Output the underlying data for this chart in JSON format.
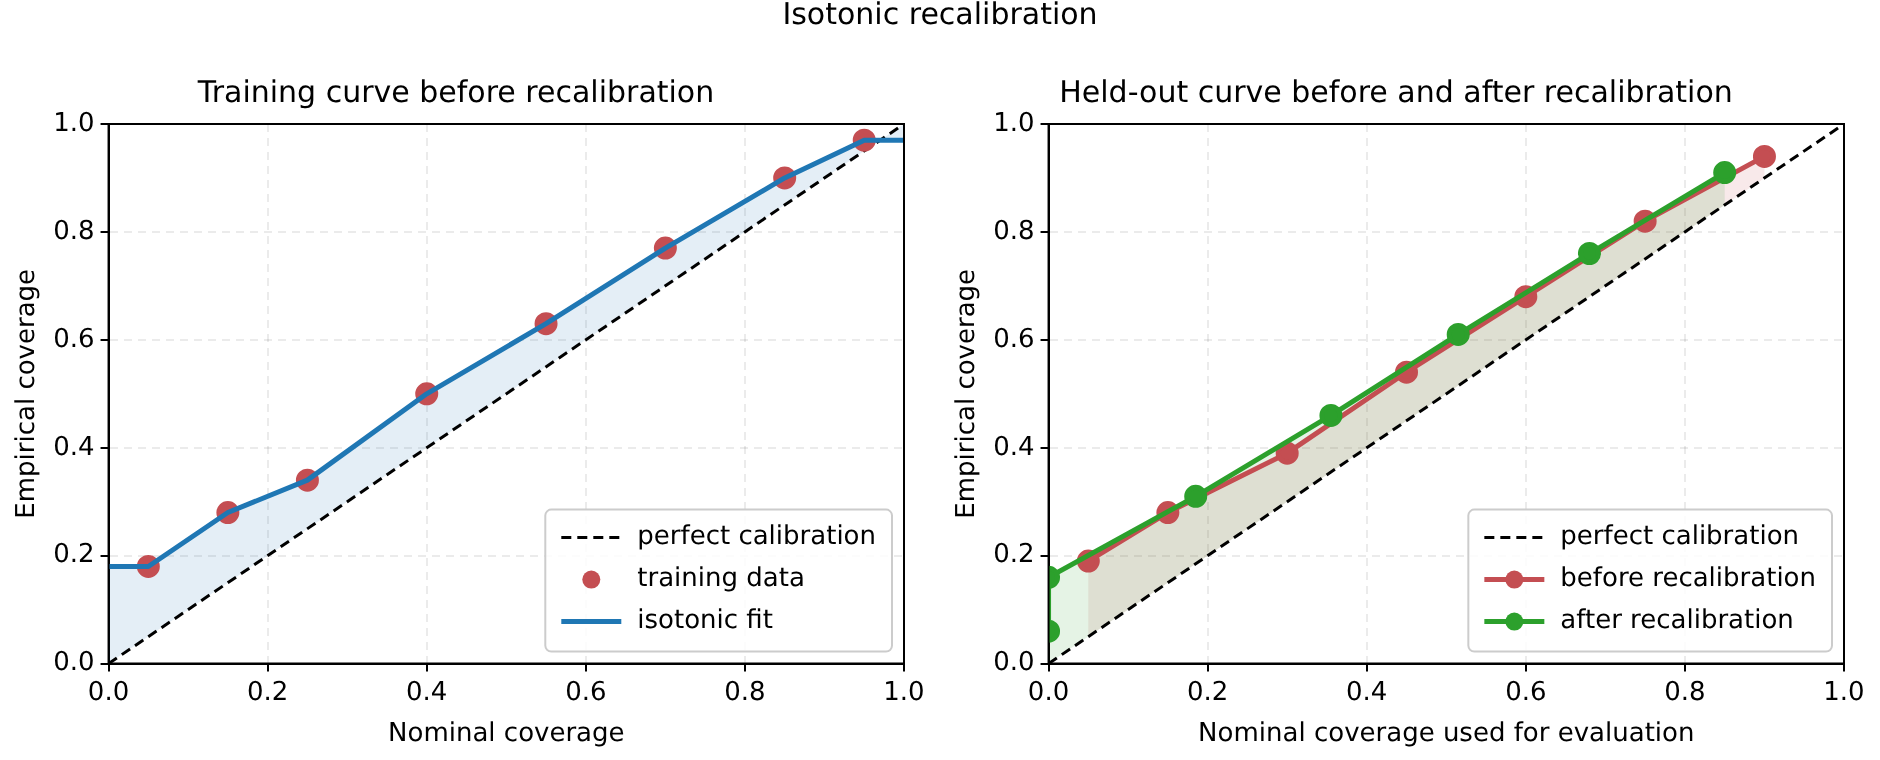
{
  "chart_data": [
    {
      "type": "line",
      "title": "Training curve before recalibration",
      "annotations": [
        "Isotonic recalibration"
      ],
      "xlabel": "Nominal coverage",
      "ylabel": "Empirical coverage",
      "xlim": [
        0,
        1
      ],
      "ylim": [
        0,
        1
      ],
      "xticks": [
        {
          "value": 0,
          "label": "0.0"
        },
        {
          "value": 0.2,
          "label": "0.2"
        },
        {
          "value": 0.4,
          "label": "0.4"
        },
        {
          "value": 0.6,
          "label": "0.6"
        },
        {
          "value": 0.8,
          "label": "0.8"
        },
        {
          "value": 1,
          "label": "1.0"
        }
      ],
      "yticks": [
        {
          "value": 0,
          "label": "0.0"
        },
        {
          "value": 0.2,
          "label": "0.2"
        },
        {
          "value": 0.4,
          "label": "0.4"
        },
        {
          "value": 0.6,
          "label": "0.6"
        },
        {
          "value": 0.8,
          "label": "0.8"
        },
        {
          "value": 1,
          "label": "1.0"
        }
      ],
      "grid": true,
      "legend": "lower right",
      "series": [
        {
          "name": "perfect calibration",
          "type": "line",
          "color": "#000000",
          "line_style": "dashed",
          "marker": "none",
          "x": [
            0,
            1
          ],
          "values": [
            0,
            1
          ]
        },
        {
          "name": "training data",
          "type": "scatter",
          "color": "#c44e52",
          "marker": "circle",
          "x": [
            0.05,
            0.15,
            0.25,
            0.4,
            0.55,
            0.7,
            0.85,
            0.95
          ],
          "values": [
            0.18,
            0.28,
            0.34,
            0.5,
            0.63,
            0.77,
            0.9,
            0.97
          ]
        },
        {
          "name": "isotonic fit",
          "type": "line",
          "color": "#1f77b4",
          "line_style": "solid",
          "marker": "none",
          "x": [
            0,
            0.05,
            0.15,
            0.25,
            0.4,
            0.55,
            0.7,
            0.85,
            0.95,
            1
          ],
          "values": [
            0.18,
            0.18,
            0.28,
            0.34,
            0.5,
            0.63,
            0.77,
            0.9,
            0.97,
            0.97
          ],
          "lower": [
            0,
            0.05,
            0.15,
            0.25,
            0.4,
            0.55,
            0.7,
            0.85,
            0.95,
            1
          ],
          "upper": [
            0.18,
            0.18,
            0.28,
            0.34,
            0.5,
            0.63,
            0.77,
            0.9,
            0.97,
            0.97
          ]
        }
      ]
    },
    {
      "type": "line",
      "title": "Held-out curve before and after recalibration",
      "xlabel": "Nominal coverage used for evaluation",
      "ylabel": "Empirical coverage",
      "xlim": [
        0,
        1
      ],
      "ylim": [
        0,
        1
      ],
      "xticks": [
        {
          "value": 0,
          "label": "0.0"
        },
        {
          "value": 0.2,
          "label": "0.2"
        },
        {
          "value": 0.4,
          "label": "0.4"
        },
        {
          "value": 0.6,
          "label": "0.6"
        },
        {
          "value": 0.8,
          "label": "0.8"
        },
        {
          "value": 1,
          "label": "1.0"
        }
      ],
      "yticks": [
        {
          "value": 0,
          "label": "0.0"
        },
        {
          "value": 0.2,
          "label": "0.2"
        },
        {
          "value": 0.4,
          "label": "0.4"
        },
        {
          "value": 0.6,
          "label": "0.6"
        },
        {
          "value": 0.8,
          "label": "0.8"
        },
        {
          "value": 1,
          "label": "1.0"
        }
      ],
      "grid": true,
      "legend": "lower right",
      "series": [
        {
          "name": "perfect calibration",
          "type": "line",
          "color": "#000000",
          "line_style": "dashed",
          "marker": "none",
          "x": [
            0,
            1
          ],
          "values": [
            0,
            1
          ]
        },
        {
          "name": "before recalibration",
          "type": "line",
          "color": "#c44e52",
          "line_style": "solid",
          "marker": "circle",
          "x": [
            0.05,
            0.15,
            0.3,
            0.45,
            0.6,
            0.75,
            0.9
          ],
          "values": [
            0.19,
            0.28,
            0.39,
            0.54,
            0.68,
            0.82,
            0.94
          ],
          "lower": [
            0.05,
            0.15,
            0.3,
            0.45,
            0.6,
            0.75,
            0.9
          ],
          "upper": [
            0.19,
            0.28,
            0.39,
            0.54,
            0.68,
            0.82,
            0.94
          ]
        },
        {
          "name": "after recalibration",
          "type": "line",
          "color": "#2ca02c",
          "line_style": "solid",
          "marker": "circle",
          "x": [
            0,
            0,
            0.185,
            0.355,
            0.515,
            0.68,
            0.85
          ],
          "values": [
            0.06,
            0.16,
            0.31,
            0.46,
            0.61,
            0.76,
            0.91
          ],
          "lower": [
            0,
            0,
            0.185,
            0.355,
            0.515,
            0.68,
            0.85
          ],
          "upper": [
            0.06,
            0.16,
            0.31,
            0.46,
            0.61,
            0.76,
            0.91
          ]
        }
      ]
    }
  ]
}
